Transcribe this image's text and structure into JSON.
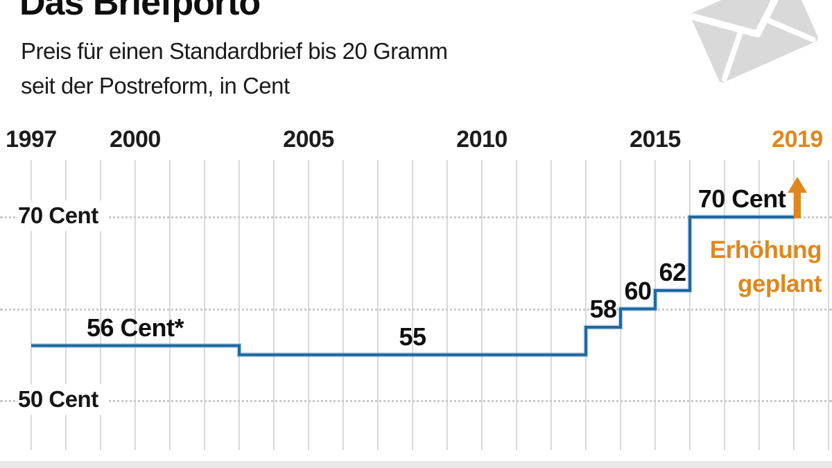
{
  "header": {
    "title": "Das Briefporto",
    "subtitle_line1": "Preis für einen Standardbrief bis 20 Gramm",
    "subtitle_line2": "seit der Postreform, in Cent"
  },
  "colors": {
    "line_blue": "#20689f",
    "line_blue_halo": "#8ab4d6",
    "accent_orange": "#e0871c",
    "grid_gray": "#d8d8d8",
    "dotted_gray": "#c9c9c9",
    "logo_gray": "#d9d9d9",
    "footer_gray": "#e9e9e9",
    "text_black": "#161616"
  },
  "chart_data": {
    "type": "line",
    "subtype": "step",
    "unit": "Cent",
    "x_range": [
      1997,
      2020
    ],
    "x_ticks": [
      {
        "year": 1997,
        "label": "1997"
      },
      {
        "year": 2000,
        "label": "2000"
      },
      {
        "year": 2005,
        "label": "2005"
      },
      {
        "year": 2010,
        "label": "2010"
      },
      {
        "year": 2015,
        "label": "2015"
      },
      {
        "year": 2019,
        "label": "2019",
        "highlight": true
      }
    ],
    "y_gridlines": [
      {
        "value": 70,
        "label": "70 Cent"
      },
      {
        "value": 60,
        "label": ""
      },
      {
        "value": 50,
        "label": "50 Cent"
      }
    ],
    "ylim": [
      48,
      74
    ],
    "steps": [
      {
        "from_year": 1997,
        "value": 56,
        "label": "56 Cent*"
      },
      {
        "from_year": 2003,
        "value": 55,
        "label": "55"
      },
      {
        "from_year": 2013,
        "value": 58,
        "label": "58"
      },
      {
        "from_year": 2014,
        "value": 60,
        "label": "60"
      },
      {
        "from_year": 2015,
        "value": 62,
        "label": "62"
      },
      {
        "from_year": 2016,
        "value": 70,
        "label": "70 Cent"
      }
    ],
    "end_year": 2019,
    "annotation": {
      "line1": "Erhöhung",
      "line2": "geplant",
      "arrow": "up"
    }
  }
}
